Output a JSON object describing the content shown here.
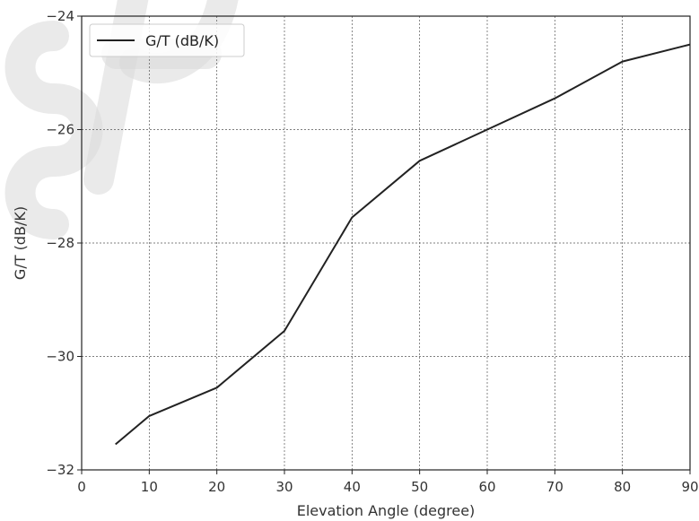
{
  "chart_data": {
    "type": "line",
    "title": "",
    "xlabel": "Elevation Angle (degree)",
    "ylabel": "G/T (dB/K)",
    "xlim": [
      0,
      90
    ],
    "ylim": [
      -32,
      -24
    ],
    "xticks": [
      0,
      10,
      20,
      30,
      40,
      50,
      60,
      70,
      80,
      90
    ],
    "yticks": [
      -32,
      -30,
      -28,
      -26,
      -24
    ],
    "grid": true,
    "legend_position": "top-left",
    "series": [
      {
        "name": "G/T (dB/K)",
        "color": "#222222",
        "x": [
          5,
          10,
          20,
          30,
          40,
          50,
          60,
          70,
          80,
          90
        ],
        "y": [
          -31.55,
          -31.05,
          -30.55,
          -29.55,
          -27.55,
          -26.55,
          -26.0,
          -25.45,
          -24.8,
          -24.5
        ]
      }
    ]
  }
}
